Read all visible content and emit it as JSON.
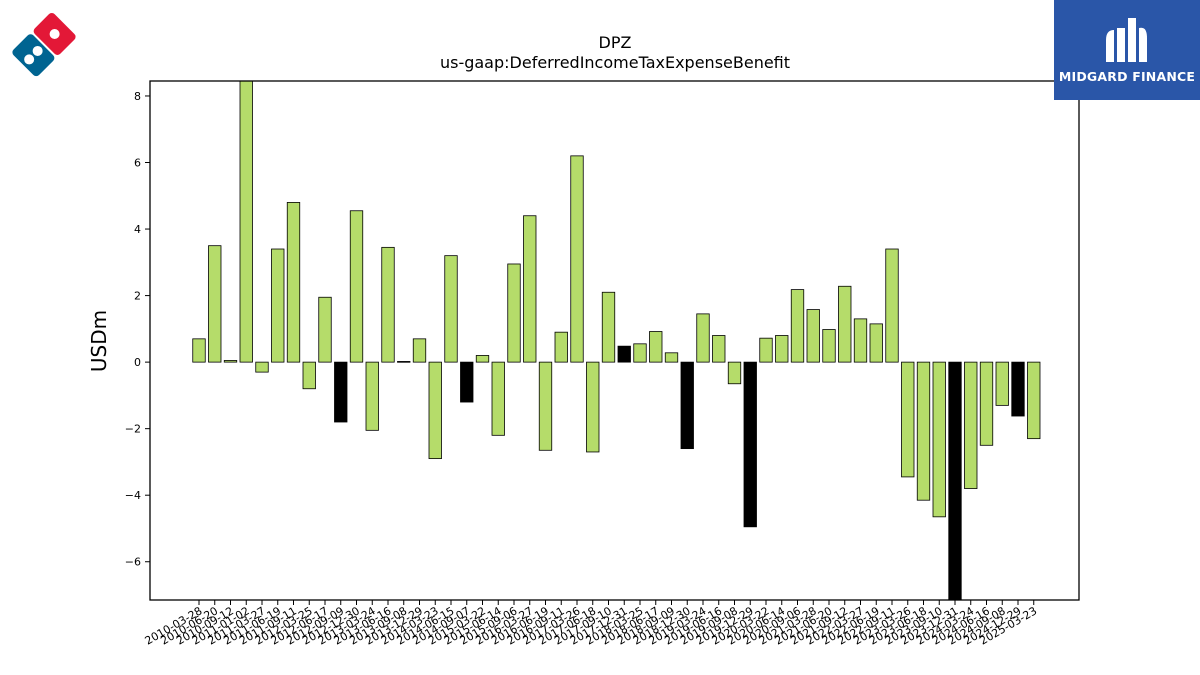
{
  "brand": {
    "company_logo_icon": "dominos-domino-logo-icon",
    "publisher_name": "MIDGARD FINANCE",
    "publisher_logo_icon": "midgard-finance-logo-icon",
    "colors": {
      "panel": "#2a56a8",
      "logo_red": "#e31837",
      "logo_blue": "#006491"
    }
  },
  "chart_data": {
    "type": "bar",
    "title": "DPZ",
    "subtitle": "us-gaap:DeferredIncomeTaxExpenseBenefit",
    "xlabel": "",
    "ylabel": "USDm",
    "ylim": [
      -7.15,
      8.45
    ],
    "yticks": [
      -6,
      -4,
      -2,
      0,
      2,
      4,
      6,
      8
    ],
    "grid": false,
    "colors": {
      "positive": "#b5dc6a",
      "highlight": "#000000",
      "edge": "#000000"
    },
    "categories": [
      "2010-03-28",
      "2010-06-20",
      "2010-09-12",
      "2011-01-02",
      "2011-03-27",
      "2011-06-19",
      "2011-09-11",
      "2012-03-25",
      "2012-06-17",
      "2012-09-09",
      "2012-12-30",
      "2013-03-24",
      "2013-06-16",
      "2013-09-08",
      "2013-12-29",
      "2014-03-23",
      "2014-06-15",
      "2014-09-07",
      "2015-03-22",
      "2015-06-14",
      "2015-09-06",
      "2016-03-27",
      "2016-06-19",
      "2016-09-11",
      "2017-03-26",
      "2017-06-18",
      "2017-09-10",
      "2017-12-31",
      "2018-03-25",
      "2018-06-17",
      "2018-09-09",
      "2018-12-30",
      "2019-03-24",
      "2019-06-16",
      "2019-09-08",
      "2019-12-29",
      "2020-03-22",
      "2020-06-14",
      "2020-09-06",
      "2021-03-28",
      "2021-06-20",
      "2021-09-12",
      "2022-03-27",
      "2022-06-19",
      "2022-09-11",
      "2023-03-26",
      "2023-06-18",
      "2023-09-10",
      "2023-12-31",
      "2024-03-24",
      "2024-06-16",
      "2024-09-08",
      "2024-12-29",
      "2025-03-23"
    ],
    "values": [
      0.7,
      3.5,
      0.05,
      8.5,
      -0.3,
      3.4,
      4.8,
      -0.8,
      1.95,
      -1.8,
      4.55,
      -2.05,
      3.45,
      0.02,
      0.7,
      -2.9,
      3.2,
      -1.2,
      0.2,
      -2.2,
      2.95,
      4.4,
      -2.65,
      0.9,
      6.2,
      -2.7,
      2.1,
      0.48,
      0.55,
      0.92,
      0.28,
      -2.6,
      1.45,
      0.8,
      -0.65,
      -4.95,
      0.72,
      0.8,
      2.18,
      1.58,
      0.98,
      2.28,
      1.3,
      1.15,
      3.4,
      -3.45,
      -4.15,
      -4.65,
      -7.2,
      -3.8,
      -2.5,
      -1.3,
      -1.62,
      -2.3
    ],
    "highlighted": [
      false,
      false,
      false,
      false,
      false,
      false,
      false,
      false,
      false,
      true,
      false,
      false,
      false,
      true,
      false,
      false,
      false,
      true,
      false,
      false,
      false,
      false,
      false,
      false,
      false,
      false,
      false,
      true,
      false,
      false,
      false,
      true,
      false,
      false,
      false,
      true,
      false,
      false,
      false,
      false,
      false,
      false,
      false,
      false,
      false,
      false,
      false,
      false,
      true,
      false,
      false,
      false,
      true,
      false
    ]
  }
}
